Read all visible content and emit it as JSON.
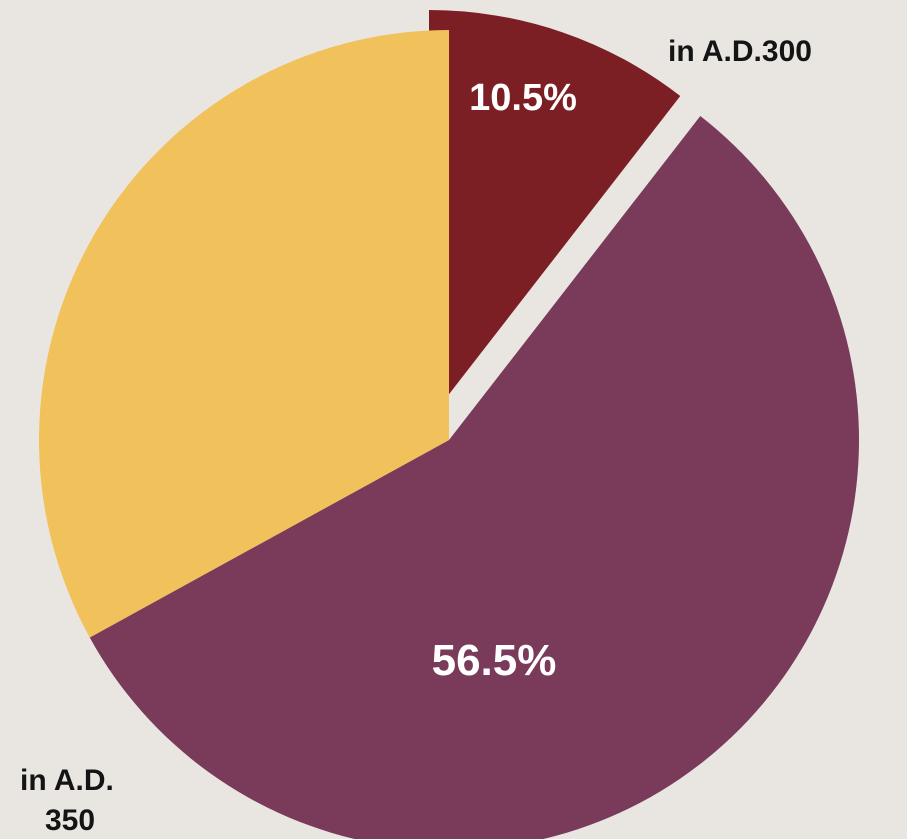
{
  "chart_data": {
    "type": "pie",
    "slices": [
      {
        "value": 10.5,
        "label": "10.5%",
        "color": "#7c1f25"
      },
      {
        "value": 56.5,
        "label": "56.5%",
        "color": "#7a3a5a"
      },
      {
        "value": 33.0,
        "label": "",
        "color": "#f1c15c"
      }
    ],
    "annotations": [
      {
        "text": "in A.D.300"
      },
      {
        "lines": [
          "in A.D.",
          "350"
        ]
      }
    ],
    "background": "#e9e6e2"
  }
}
